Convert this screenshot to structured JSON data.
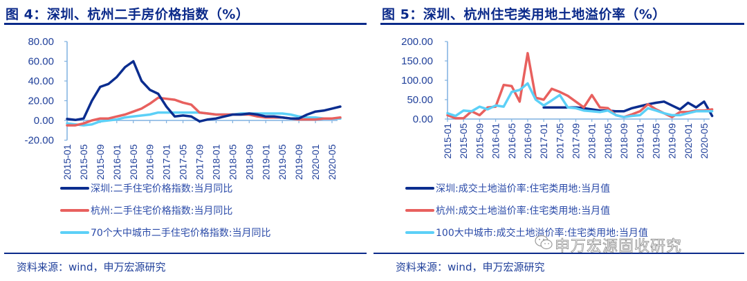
{
  "figures": [
    {
      "title": "图 4：深圳、杭州二手房价格指数（%）",
      "source": "资料来源：wind，申万宏源研究",
      "legend": [
        {
          "label": "深圳:二手住宅价格指数:当月同比",
          "color": "#0b2d8f"
        },
        {
          "label": "杭州:二手住宅价格指数:当月同比",
          "color": "#e8605e"
        },
        {
          "label": "70个大中城市二手住宅价格指数:当月同比",
          "color": "#5cd0f7"
        }
      ]
    },
    {
      "title": "图 5：深圳、杭州住宅类用地土地溢价率（%）",
      "source": "资料来源：wind，申万宏源研究",
      "legend": [
        {
          "label": "深圳:成交土地溢价率:住宅类用地:当月值",
          "color": "#0b2d8f"
        },
        {
          "label": "杭州:成交土地溢价率:住宅类用地:当月值",
          "color": "#e8605e"
        },
        {
          "label": "100大中城市:成交土地溢价率:住宅类用地:当月值",
          "color": "#5cd0f7"
        }
      ]
    }
  ],
  "watermark": "申万宏源固收研究",
  "chart_data": [
    {
      "type": "line",
      "title": "图 4：深圳、杭州二手房价格指数（%）",
      "xlabel": "",
      "ylabel": "",
      "ylim": [
        -20,
        80
      ],
      "yticks": [
        "80.00",
        "60.00",
        "40.00",
        "20.00",
        "0.00",
        "-20.00"
      ],
      "xticks": [
        "2015-01",
        "2015-05",
        "2015-09",
        "2016-01",
        "2016-05",
        "2016-09",
        "2017-01",
        "2017-05",
        "2017-09",
        "2018-01",
        "2018-05",
        "2018-09",
        "2019-01",
        "2019-05",
        "2019-09",
        "2020-01",
        "2020-05"
      ],
      "grid": false,
      "legend_position": "bottom",
      "x": [
        "2015-01",
        "2015-03",
        "2015-05",
        "2015-07",
        "2015-09",
        "2015-11",
        "2016-01",
        "2016-03",
        "2016-05",
        "2016-07",
        "2016-09",
        "2016-11",
        "2017-01",
        "2017-03",
        "2017-05",
        "2017-07",
        "2017-09",
        "2017-11",
        "2018-01",
        "2018-03",
        "2018-05",
        "2018-07",
        "2018-09",
        "2018-11",
        "2019-01",
        "2019-03",
        "2019-05",
        "2019-07",
        "2019-09",
        "2019-11",
        "2020-01",
        "2020-03",
        "2020-05",
        "2020-07"
      ],
      "series": [
        {
          "name": "深圳:二手住宅价格指数:当月同比",
          "color": "#0b2d8f",
          "values": [
            1.5,
            0.5,
            2,
            20,
            34,
            37,
            44,
            54,
            60,
            40,
            31,
            27,
            14,
            4,
            5,
            4,
            -1,
            1,
            2,
            4,
            6,
            6,
            7,
            6,
            4,
            4,
            3,
            2,
            2,
            6,
            9,
            10,
            12,
            14
          ]
        },
        {
          "name": "杭州:二手住宅价格指数:当月同比",
          "color": "#e8605e",
          "values": [
            -5,
            -5,
            -3,
            0,
            2,
            2,
            4,
            6,
            9,
            12,
            17,
            23,
            22,
            21,
            18,
            16,
            8,
            7,
            6,
            6,
            6,
            6,
            6,
            4,
            3,
            3,
            3,
            2,
            1,
            1,
            1,
            2,
            2,
            3
          ]
        },
        {
          "name": "70个大中城市二手住宅价格指数:当月同比",
          "color": "#5cd0f7",
          "values": [
            -3,
            -4,
            -5,
            -4,
            -1,
            0,
            1,
            3,
            4,
            5,
            6,
            8,
            8,
            8,
            8,
            8,
            8,
            7,
            6,
            6,
            6,
            7,
            7,
            7,
            7,
            7,
            7,
            6,
            4,
            3,
            3,
            2,
            2,
            2
          ]
        }
      ]
    },
    {
      "type": "line",
      "title": "图 5：深圳、杭州住宅类用地土地溢价率（%）",
      "xlabel": "",
      "ylabel": "",
      "ylim": [
        0,
        200
      ],
      "yticks": [
        "200.00",
        "150.00",
        "100.00",
        "50.00",
        "0.00"
      ],
      "xticks": [
        "2015-01",
        "2015-05",
        "2015-09",
        "2016-01",
        "2016-05",
        "2016-09",
        "2017-01",
        "2017-05",
        "2017-09",
        "2018-01",
        "2018-05",
        "2018-09",
        "2019-01",
        "2019-05",
        "2019-09",
        "2020-01",
        "2020-05"
      ],
      "grid": false,
      "legend_position": "bottom",
      "x": [
        "2015-01",
        "2015-03",
        "2015-05",
        "2015-07",
        "2015-09",
        "2015-11",
        "2016-01",
        "2016-03",
        "2016-05",
        "2016-07",
        "2016-09",
        "2016-11",
        "2017-01",
        "2017-03",
        "2017-05",
        "2017-07",
        "2017-09",
        "2017-11",
        "2018-01",
        "2018-03",
        "2018-05",
        "2018-07",
        "2018-09",
        "2018-11",
        "2019-01",
        "2019-03",
        "2019-05",
        "2019-07",
        "2019-09",
        "2019-11",
        "2020-01",
        "2020-03",
        "2020-05",
        "2020-07"
      ],
      "series": [
        {
          "name": "深圳:成交土地溢价率:住宅类用地:当月值",
          "color": "#0b2d8f",
          "values": [
            null,
            null,
            null,
            null,
            null,
            null,
            null,
            null,
            null,
            null,
            null,
            null,
            30,
            30,
            30,
            30,
            30,
            28,
            25,
            22,
            22,
            20,
            20,
            28,
            33,
            38,
            42,
            45,
            35,
            25,
            42,
            30,
            45,
            8
          ]
        },
        {
          "name": "杭州:成交土地溢价率:住宅类用地:当月值",
          "color": "#e8605e",
          "values": [
            10,
            2,
            2,
            20,
            10,
            30,
            32,
            88,
            85,
            45,
            170,
            55,
            50,
            78,
            70,
            60,
            45,
            30,
            62,
            30,
            28,
            10,
            5,
            12,
            20,
            38,
            25,
            15,
            5,
            18,
            18,
            22,
            22,
            25
          ]
        },
        {
          "name": "100大中城市:成交土地溢价率:住宅类用地:当月值",
          "color": "#5cd0f7",
          "values": [
            15,
            8,
            22,
            20,
            32,
            25,
            35,
            32,
            70,
            75,
            92,
            50,
            35,
            48,
            62,
            30,
            28,
            22,
            20,
            18,
            22,
            10,
            5,
            8,
            10,
            28,
            22,
            15,
            10,
            10,
            15,
            20,
            20,
            20
          ]
        }
      ]
    }
  ]
}
